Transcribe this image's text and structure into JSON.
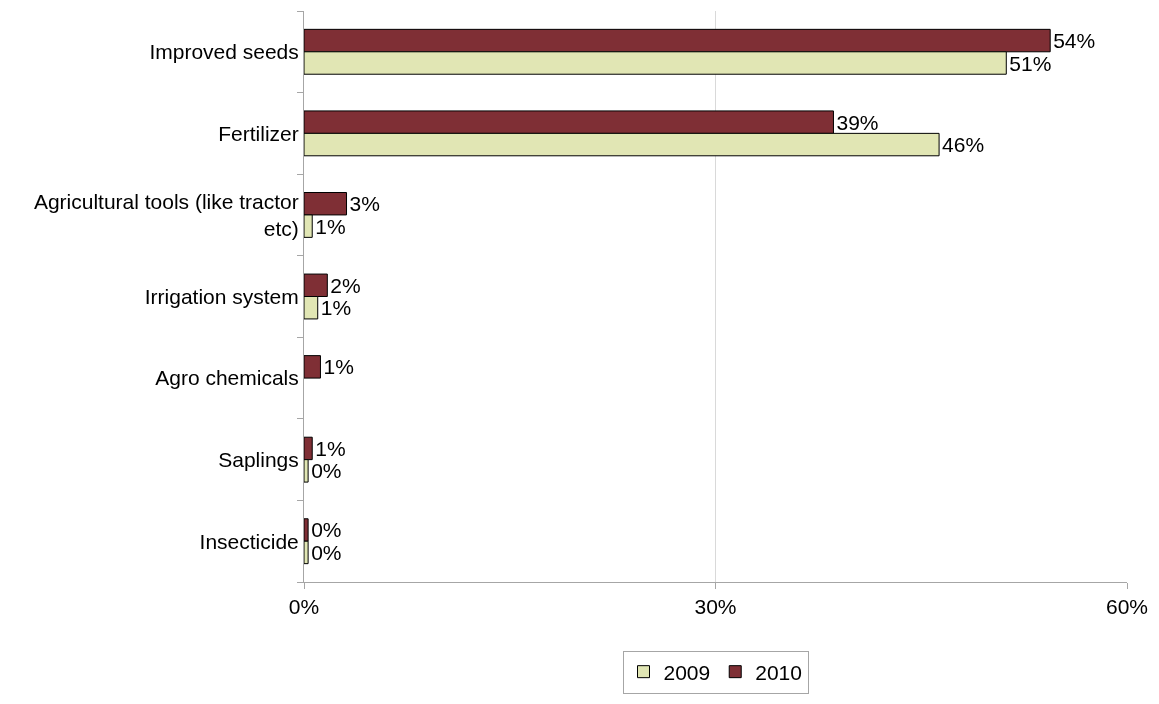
{
  "chart_data": {
    "type": "bar",
    "orientation": "horizontal",
    "categories": [
      "Improved seeds",
      "Fertilizer",
      "Agricultural tools (like tractor etc)",
      "Irrigation system",
      "Agro chemicals",
      "Saplings",
      "Insecticide"
    ],
    "series": [
      {
        "name": "2009",
        "color": "#e1e6b4",
        "values": [
          51.2,
          46.3,
          0.6,
          1.0,
          null,
          0.3,
          0.3
        ],
        "value_labels": [
          "51%",
          "46%",
          "1%",
          "1%",
          null,
          "0%",
          "0%"
        ]
      },
      {
        "name": "2010",
        "color": "#7f2f35",
        "values": [
          54.4,
          38.6,
          3.1,
          1.7,
          1.2,
          0.6,
          0.3
        ],
        "value_labels": [
          "54%",
          "39%",
          "3%",
          "2%",
          "1%",
          "1%",
          "0%"
        ]
      }
    ],
    "xlim": [
      0,
      60
    ],
    "xticks": [
      {
        "value": 0,
        "label": "0%"
      },
      {
        "value": 30,
        "label": "30%"
      },
      {
        "value": 60,
        "label": "60%"
      }
    ],
    "grid": "x",
    "legend": "bottom"
  }
}
